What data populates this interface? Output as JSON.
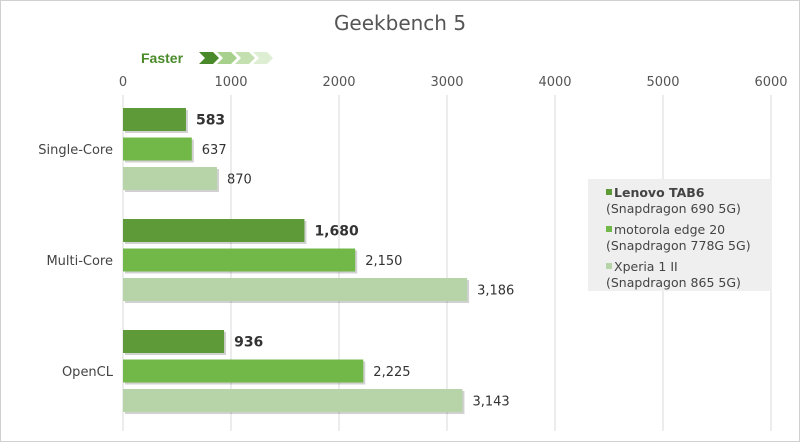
{
  "chart_data": {
    "type": "bar",
    "title": "Geekbench 5",
    "annotation": "Faster",
    "categories": [
      "Single-Core",
      "Multi-Core",
      "OpenCL"
    ],
    "xlim": [
      0,
      6000
    ],
    "xticks": [
      "0",
      "1000",
      "2000",
      "3000",
      "4000",
      "5000",
      "6000"
    ],
    "grid": true,
    "legend_position": "right",
    "series": [
      {
        "name": "Lenovo TAB6",
        "name2": "(Snapdragon 690 5G)",
        "color": "#5e9a38",
        "values": [
          583,
          1680,
          936
        ],
        "labels": [
          "583",
          "1,680",
          "936"
        ]
      },
      {
        "name": "motorola edge 20",
        "name2": "(Snapdragon 778G 5G)",
        "color": "#72b848",
        "values": [
          637,
          2150,
          2225
        ],
        "labels": [
          "637",
          "2,150",
          "2,225"
        ]
      },
      {
        "name": "Xperia 1 II",
        "name2": "(Snapdragon 865 5G)",
        "color": "#b6d4a7",
        "values": [
          870,
          3186,
          3143
        ],
        "labels": [
          "870",
          "3,186",
          "3,143"
        ]
      }
    ]
  }
}
